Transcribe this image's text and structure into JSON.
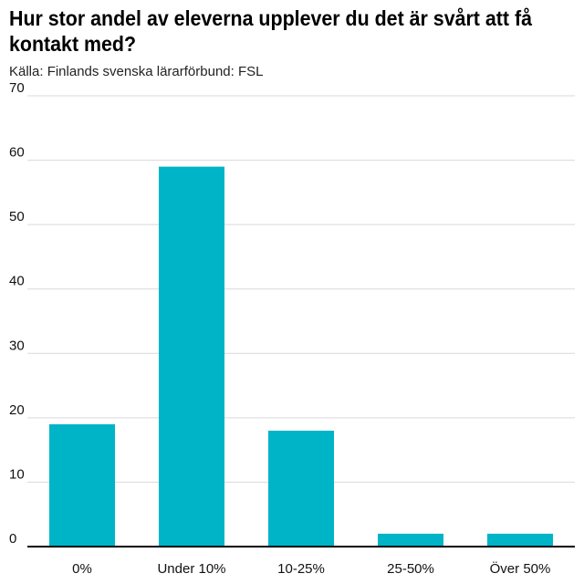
{
  "title": "Hur stor andel av eleverna upplever du det är svårt att få kontakt med?",
  "subtitle": "Källa: Finlands svenska lärarförbund: FSL",
  "chart_data": {
    "type": "bar",
    "categories": [
      "0%",
      "Under 10%",
      "10-25%",
      "25-50%",
      "Över 50%"
    ],
    "values": [
      19,
      59,
      18,
      2,
      2
    ],
    "ylim": [
      0,
      70
    ],
    "yticks": [
      0,
      10,
      20,
      30,
      40,
      50,
      60,
      70
    ],
    "grid": true,
    "bar_color": "#00b4c8",
    "gridline_color": "#d9d9d9",
    "axis_color": "#000000"
  }
}
